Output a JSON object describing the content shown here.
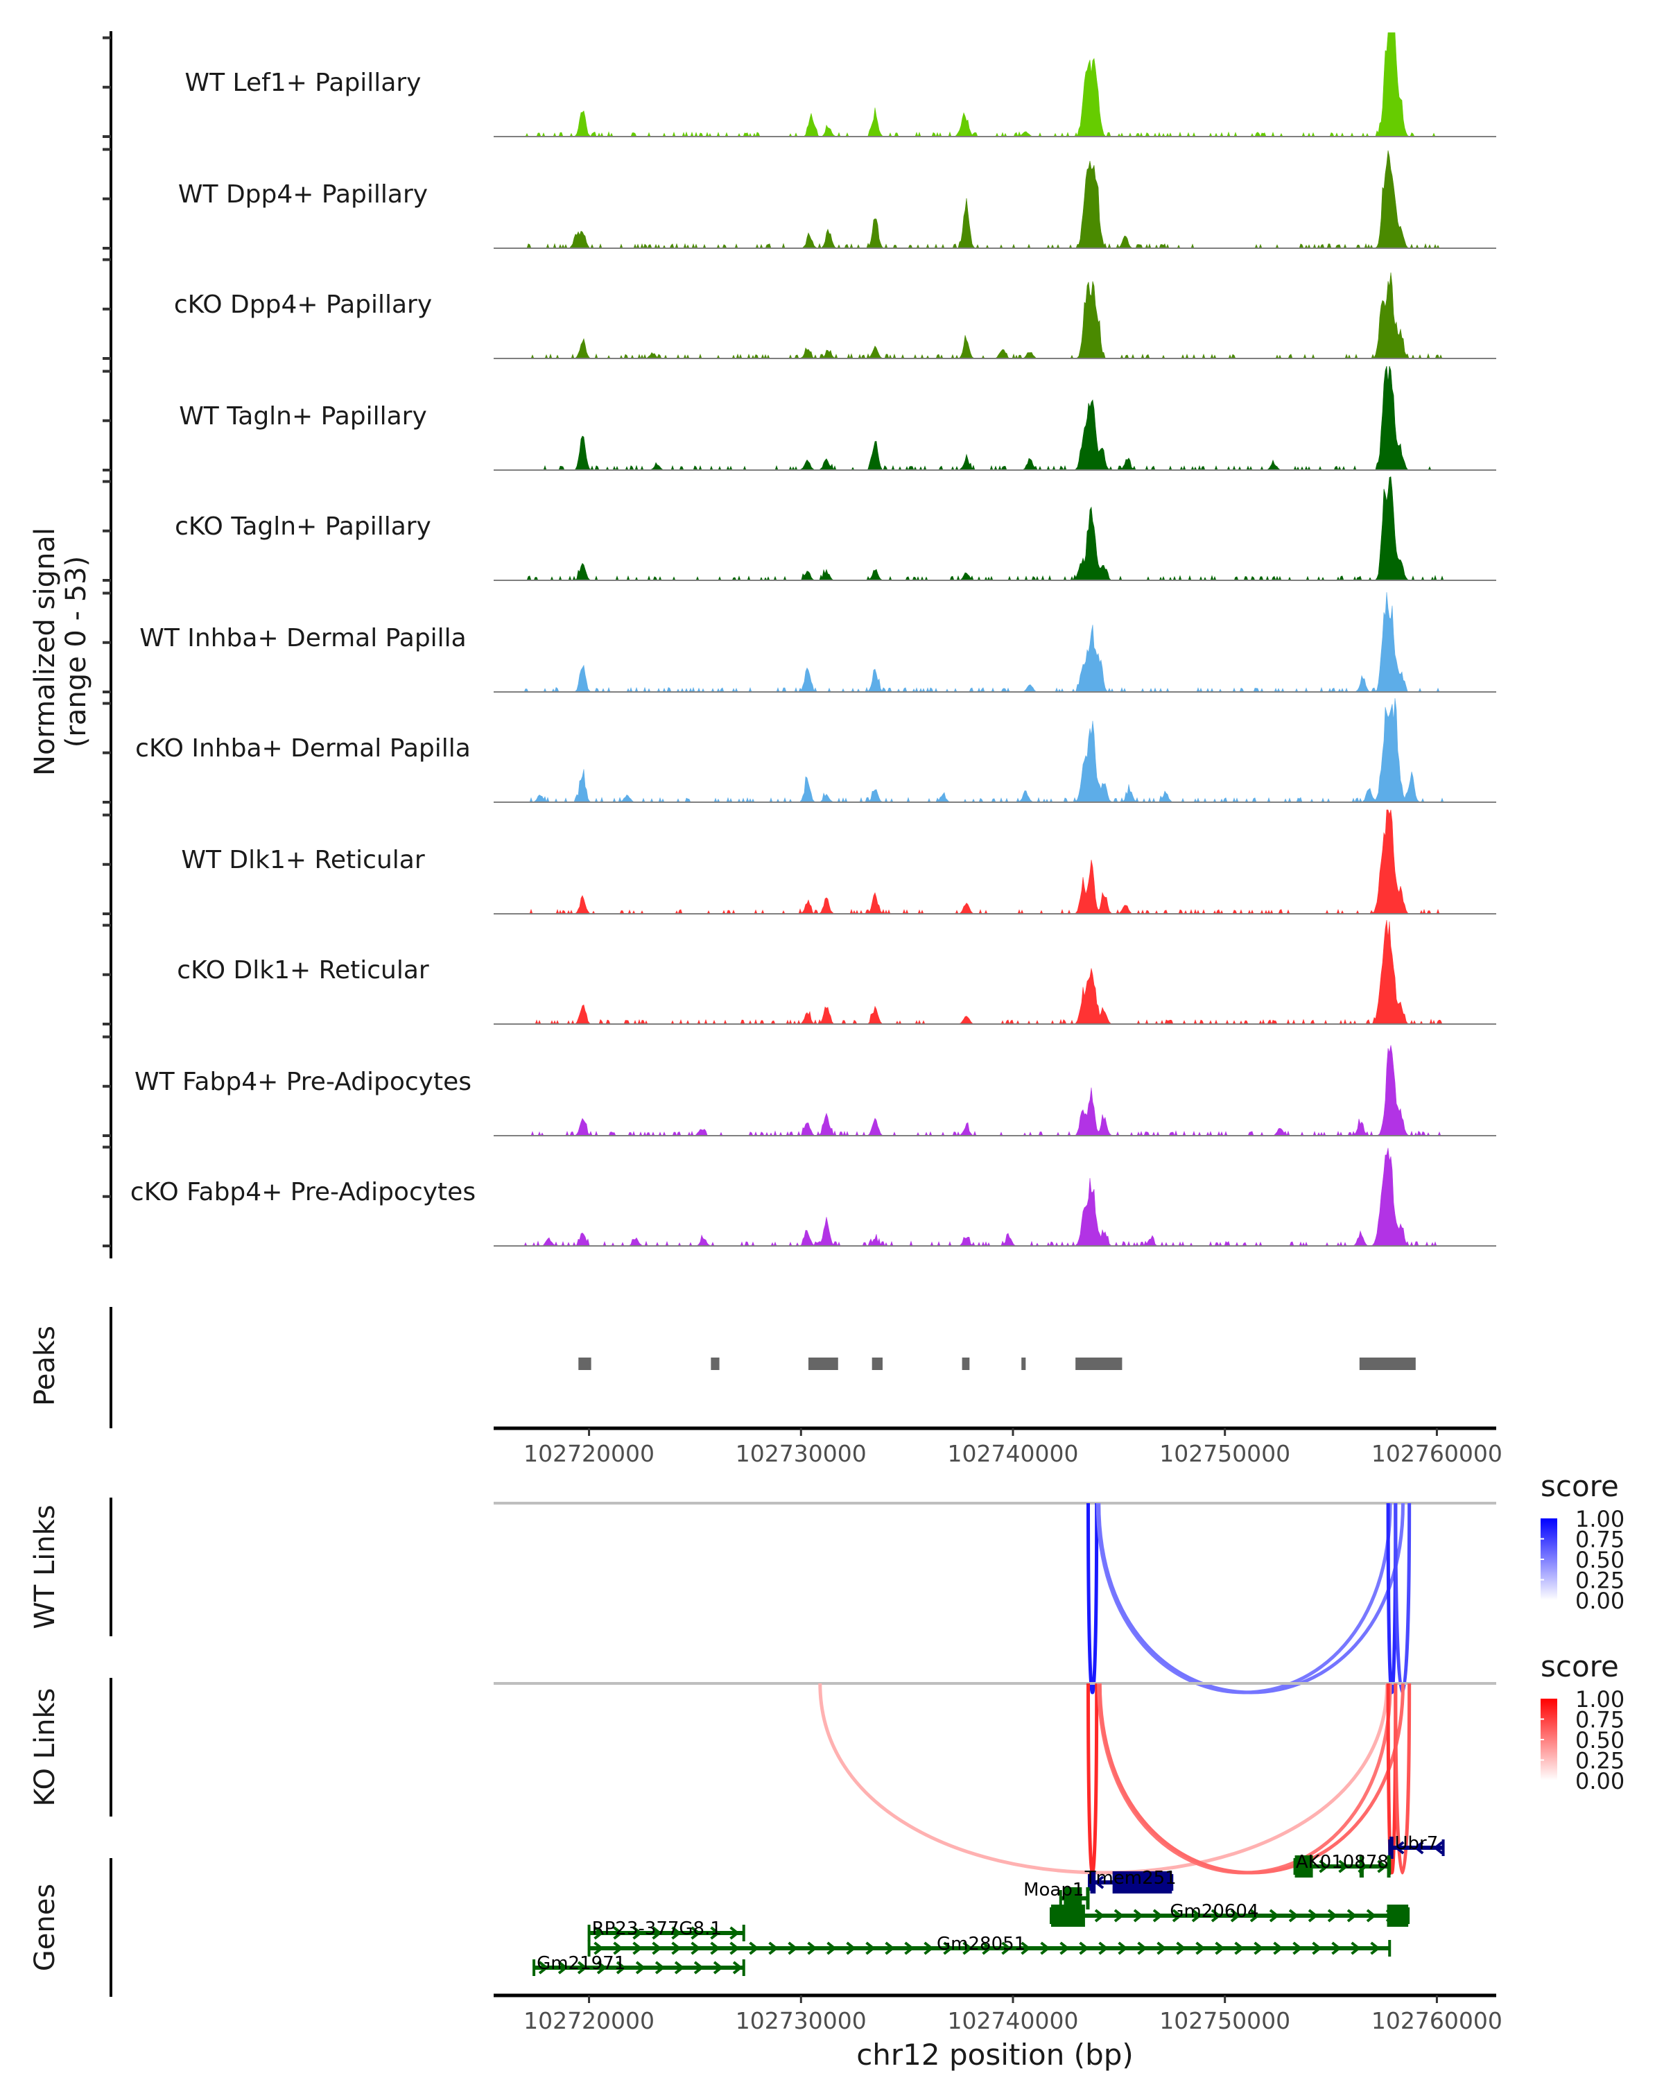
{
  "chart_data": {
    "type": "area",
    "title": "",
    "chromosome": "chr12",
    "xlim": [
      102715500,
      102762800
    ],
    "xlabel": "chr12 position (bp)",
    "x_ticks": [
      102720000,
      102730000,
      102740000,
      102750000,
      102760000
    ],
    "x_tick_labels": [
      "102720000",
      "102730000",
      "102740000",
      "102750000",
      "102760000"
    ],
    "coverage": {
      "ylabel_line1": "Normalized signal",
      "ylabel_line2": "(range 0 - 53)",
      "ylim": [
        0,
        53
      ],
      "tracks": [
        {
          "name": "WT Lef1+ Papillary",
          "color": "#66CC00",
          "peaks": [
            [
              102719700,
              15
            ],
            [
              102730500,
              11
            ],
            [
              102731300,
              5
            ],
            [
              102733500,
              12
            ],
            [
              102737600,
              6
            ],
            [
              102737800,
              9
            ],
            [
              102740600,
              3
            ],
            [
              102743400,
              22
            ],
            [
              102743700,
              40
            ],
            [
              102744000,
              16
            ],
            [
              102757700,
              41
            ],
            [
              102757900,
              53
            ],
            [
              102758300,
              13
            ]
          ]
        },
        {
          "name": "WT Dpp4+ Papillary",
          "color": "#4A8A00",
          "peaks": [
            [
              102719400,
              7
            ],
            [
              102719700,
              9
            ],
            [
              102730400,
              7
            ],
            [
              102731300,
              10
            ],
            [
              102733500,
              18
            ],
            [
              102737800,
              27
            ],
            [
              102743400,
              24
            ],
            [
              102743700,
              40
            ],
            [
              102744000,
              18
            ],
            [
              102745300,
              6
            ],
            [
              102757500,
              23
            ],
            [
              102757800,
              53
            ],
            [
              102758300,
              10
            ]
          ]
        },
        {
          "name": "cKO Dpp4+ Papillary",
          "color": "#4A8A00",
          "peaks": [
            [
              102719700,
              10
            ],
            [
              102723000,
              3
            ],
            [
              102730300,
              5
            ],
            [
              102731300,
              4
            ],
            [
              102733500,
              6
            ],
            [
              102737800,
              10
            ],
            [
              102739500,
              5
            ],
            [
              102740800,
              4
            ],
            [
              102743400,
              20
            ],
            [
              102743700,
              38
            ],
            [
              102744000,
              15
            ],
            [
              102757400,
              25
            ],
            [
              102757800,
              42
            ],
            [
              102758300,
              12
            ]
          ]
        },
        {
          "name": "WT Tagln+ Papillary",
          "color": "#006400",
          "peaks": [
            [
              102719700,
              20
            ],
            [
              102723200,
              3
            ],
            [
              102730300,
              6
            ],
            [
              102731200,
              6
            ],
            [
              102733500,
              15
            ],
            [
              102737800,
              6
            ],
            [
              102740800,
              6
            ],
            [
              102743300,
              14
            ],
            [
              102743700,
              40
            ],
            [
              102744200,
              10
            ],
            [
              102745400,
              6
            ],
            [
              102752300,
              4
            ],
            [
              102757500,
              28
            ],
            [
              102757800,
              53
            ],
            [
              102758300,
              10
            ]
          ]
        },
        {
          "name": "cKO Tagln+ Papillary",
          "color": "#006400",
          "peaks": [
            [
              102719700,
              10
            ],
            [
              102730300,
              5
            ],
            [
              102731200,
              5
            ],
            [
              102733500,
              6
            ],
            [
              102737800,
              4
            ],
            [
              102743200,
              8
            ],
            [
              102743700,
              41
            ],
            [
              102744300,
              8
            ],
            [
              102757500,
              30
            ],
            [
              102757800,
              51
            ],
            [
              102758300,
              10
            ]
          ]
        },
        {
          "name": "WT Inhba+ Dermal Papilla",
          "color": "#5DADE8",
          "peaks": [
            [
              102719700,
              15
            ],
            [
              102730300,
              12
            ],
            [
              102733500,
              12
            ],
            [
              102740800,
              4
            ],
            [
              102743300,
              12
            ],
            [
              102743700,
              33
            ],
            [
              102744100,
              15
            ],
            [
              102756500,
              7
            ],
            [
              102757500,
              30
            ],
            [
              102757800,
              46
            ],
            [
              102758300,
              10
            ]
          ]
        },
        {
          "name": "cKO Inhba+ Dermal Papilla",
          "color": "#5DADE8",
          "peaks": [
            [
              102717700,
              4
            ],
            [
              102719700,
              15
            ],
            [
              102721800,
              4
            ],
            [
              102730300,
              12
            ],
            [
              102731200,
              4
            ],
            [
              102733500,
              7
            ],
            [
              102736700,
              4
            ],
            [
              102740600,
              6
            ],
            [
              102743300,
              15
            ],
            [
              102743700,
              42
            ],
            [
              102744300,
              10
            ],
            [
              102745500,
              7
            ],
            [
              102747200,
              5
            ],
            [
              102756800,
              7
            ],
            [
              102757600,
              43
            ],
            [
              102758000,
              49
            ],
            [
              102758800,
              16
            ]
          ]
        },
        {
          "name": "WT Dlk1+ Reticular",
          "color": "#FF3333",
          "peaks": [
            [
              102719700,
              9
            ],
            [
              102730300,
              5
            ],
            [
              102731200,
              8
            ],
            [
              102733500,
              10
            ],
            [
              102737800,
              6
            ],
            [
              102743300,
              16
            ],
            [
              102743700,
              30
            ],
            [
              102744300,
              12
            ],
            [
              102745300,
              5
            ],
            [
              102757500,
              33
            ],
            [
              102757800,
              44
            ],
            [
              102758300,
              12
            ]
          ]
        },
        {
          "name": "cKO Dlk1+ Reticular",
          "color": "#FF3333",
          "peaks": [
            [
              102719700,
              10
            ],
            [
              102730300,
              6
            ],
            [
              102731200,
              10
            ],
            [
              102733500,
              9
            ],
            [
              102737800,
              5
            ],
            [
              102743300,
              14
            ],
            [
              102743700,
              32
            ],
            [
              102744300,
              8
            ],
            [
              102757500,
              34
            ],
            [
              102757800,
              38
            ],
            [
              102758300,
              10
            ]
          ]
        },
        {
          "name": "WT Fabp4+ Pre-Adipocytes",
          "color": "#B233E5",
          "peaks": [
            [
              102719700,
              10
            ],
            [
              102725300,
              4
            ],
            [
              102730300,
              7
            ],
            [
              102731200,
              12
            ],
            [
              102733500,
              10
            ],
            [
              102737800,
              5
            ],
            [
              102743300,
              14
            ],
            [
              102743700,
              24
            ],
            [
              102744300,
              10
            ],
            [
              102752600,
              4
            ],
            [
              102756400,
              7
            ],
            [
              102757800,
              53
            ],
            [
              102758300,
              11
            ]
          ]
        },
        {
          "name": "cKO Fabp4+ Pre-Adipocytes",
          "color": "#B233E5",
          "peaks": [
            [
              102718100,
              4
            ],
            [
              102719700,
              7
            ],
            [
              102722200,
              4
            ],
            [
              102725400,
              4
            ],
            [
              102730300,
              7
            ],
            [
              102731200,
              15
            ],
            [
              102733500,
              4
            ],
            [
              102737800,
              5
            ],
            [
              102739800,
              5
            ],
            [
              102743300,
              12
            ],
            [
              102743700,
              34
            ],
            [
              102744300,
              8
            ],
            [
              102746500,
              4
            ],
            [
              102756400,
              7
            ],
            [
              102757500,
              32
            ],
            [
              102757800,
              39
            ],
            [
              102758300,
              10
            ]
          ]
        }
      ]
    },
    "peaks": {
      "label": "Peaks",
      "color": "#666666",
      "regions": [
        [
          102719500,
          102720100
        ],
        [
          102725750,
          102726150
        ],
        [
          102730350,
          102731750
        ],
        [
          102733350,
          102733850
        ],
        [
          102737600,
          102737950
        ],
        [
          102740400,
          102740600
        ],
        [
          102742950,
          102745150
        ],
        [
          102756350,
          102759000
        ]
      ]
    },
    "links": [
      {
        "label": "WT Links",
        "legend_title": "score",
        "legend_ticks": [
          "1.00",
          "0.75",
          "0.50",
          "0.25",
          "0.00"
        ],
        "color_high": "#0000FF",
        "color_low": "#FFFFFF",
        "arcs": [
          {
            "start": 102743550,
            "end": 102743950,
            "score": 0.92
          },
          {
            "start": 102744000,
            "end": 102757800,
            "score": 0.48
          },
          {
            "start": 102744050,
            "end": 102758400,
            "score": 0.5
          },
          {
            "start": 102757700,
            "end": 102758050,
            "score": 0.85
          },
          {
            "start": 102758050,
            "end": 102758700,
            "score": 0.7
          }
        ]
      },
      {
        "label": "KO Links",
        "legend_title": "score",
        "legend_ticks": [
          "1.00",
          "0.75",
          "0.50",
          "0.25",
          "0.00"
        ],
        "color_high": "#FF0000",
        "color_low": "#FFFFFF",
        "arcs": [
          {
            "start": 102730900,
            "end": 102757650,
            "score": 0.22
          },
          {
            "start": 102743550,
            "end": 102743950,
            "score": 0.85
          },
          {
            "start": 102744050,
            "end": 102757800,
            "score": 0.5
          },
          {
            "start": 102744100,
            "end": 102758400,
            "score": 0.55
          },
          {
            "start": 102757700,
            "end": 102758050,
            "score": 0.8
          },
          {
            "start": 102758050,
            "end": 102758700,
            "score": 0.65
          }
        ]
      }
    ],
    "genes": {
      "label": "Genes",
      "plus_color": "#000080",
      "minus_color": "#006400",
      "items": [
        {
          "name": "Ubr7",
          "strand": "+",
          "start": 102757770,
          "end": 102760300,
          "row": 0,
          "exons": [
            [
              102757770,
              102757950
            ]
          ]
        },
        {
          "name": "AK010878",
          "strand": "-",
          "start": 102753300,
          "end": 102757770,
          "row": 1,
          "exons": [
            [
              102753300,
              102754150
            ],
            [
              102756350,
              102756550
            ],
            [
              102757650,
              102757770
            ]
          ]
        },
        {
          "name": "Tmem251",
          "strand": "+",
          "start": 102743600,
          "end": 102747500,
          "row": 2,
          "exons": [
            [
              102743650,
              102743900
            ],
            [
              102744700,
              102747500
            ]
          ]
        },
        {
          "name": "Moap1",
          "strand": "-",
          "start": 102742250,
          "end": 102743550,
          "row": 3,
          "exons": [
            [
              102742400,
              102743250
            ],
            [
              102743450,
              102743550
            ]
          ]
        },
        {
          "name": "Gm20604",
          "strand": "-",
          "start": 102741800,
          "end": 102758650,
          "row": 4,
          "exons": [
            [
              102741800,
              102743400
            ],
            [
              102757650,
              102758650
            ]
          ]
        },
        {
          "name": "RP23-377G8.1",
          "strand": "-",
          "start": 102720000,
          "end": 102727300,
          "row": 5,
          "exons": []
        },
        {
          "name": "Gm28051",
          "strand": "-",
          "start": 102720000,
          "end": 102757770,
          "row": 6,
          "exons": []
        },
        {
          "name": "Gm21971",
          "strand": "-",
          "start": 102717400,
          "end": 102727300,
          "row": 7,
          "exons": []
        }
      ]
    }
  }
}
